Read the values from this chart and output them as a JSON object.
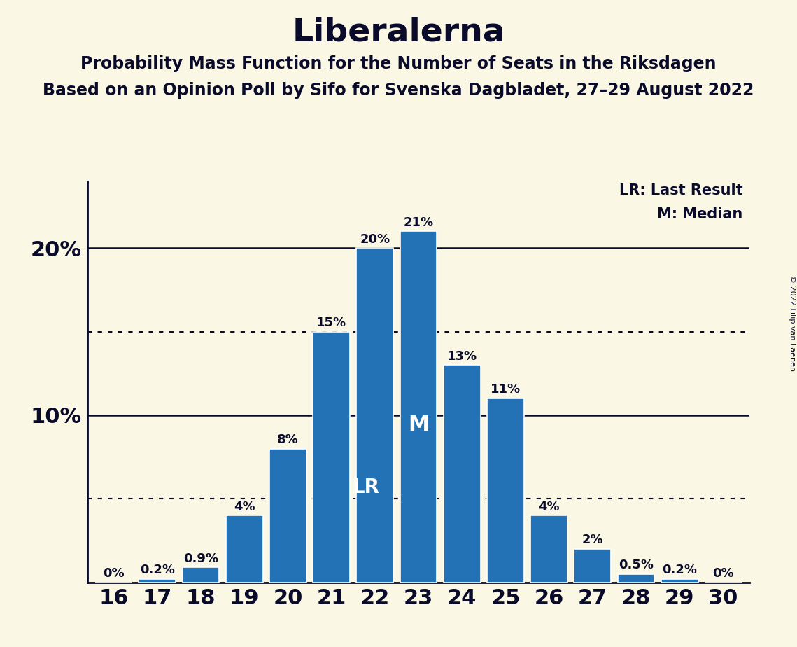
{
  "title": "Liberalerna",
  "subtitle1": "Probability Mass Function for the Number of Seats in the Riksdagen",
  "subtitle2": "Based on an Opinion Poll by Sifo for Svenska Dagbladet, 27–29 August 2022",
  "copyright": "© 2022 Filip van Laenen",
  "categories": [
    16,
    17,
    18,
    19,
    20,
    21,
    22,
    23,
    24,
    25,
    26,
    27,
    28,
    29,
    30
  ],
  "values": [
    0.0,
    0.2,
    0.9,
    4.0,
    8.0,
    15.0,
    20.0,
    21.0,
    13.0,
    11.0,
    4.0,
    2.0,
    0.5,
    0.2,
    0.0
  ],
  "bar_color": "#2272B5",
  "background_color": "#FAF7E4",
  "text_color": "#0A0A2A",
  "dotted_lines": [
    5.0,
    15.0
  ],
  "solid_lines": [
    10.0,
    20.0
  ],
  "lr_index": 5,
  "median_index": 7,
  "lr_label": "LR",
  "median_label": "M",
  "legend_lr": "LR: Last Result",
  "legend_m": "M: Median",
  "ylim": [
    0,
    24
  ],
  "bar_label_fontsize": 13,
  "title_fontsize": 34,
  "subtitle_fontsize": 17,
  "tick_fontsize": 22,
  "inner_label_fontsize": 20,
  "legend_fontsize": 15,
  "copyright_fontsize": 8
}
